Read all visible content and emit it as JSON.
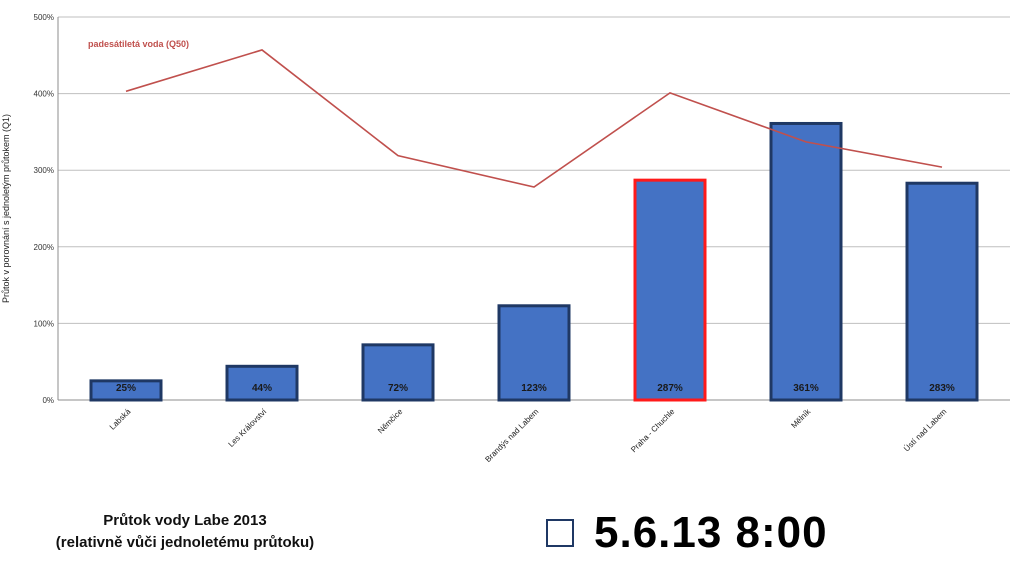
{
  "chart_data": {
    "type": "bar",
    "ylabel": "Průtok v porovnání s jednoletým průtokem (Q1)",
    "ylim": [
      0,
      500
    ],
    "yticks": [
      "0%",
      "100%",
      "200%",
      "300%",
      "400%",
      "500%"
    ],
    "grid": true,
    "categories": [
      "Labská",
      "Les Království",
      "Němčice",
      "Brandýs nad Labem",
      "Praha - Chuchle",
      "Mělník",
      "Ústí nad Labem"
    ],
    "values": [
      25,
      44,
      72,
      123,
      287,
      361,
      283
    ],
    "data_labels": [
      "25%",
      "44%",
      "72%",
      "123%",
      "287%",
      "361%",
      "283%"
    ],
    "highlighted_category": "Praha - Chuchle",
    "line": {
      "name": "padesátiletá voda (Q50)",
      "values": [
        403,
        457,
        319,
        278,
        401,
        337,
        304
      ]
    },
    "colors": {
      "bar": "#4472c4",
      "bar_border": "#1f3864",
      "highlight_border": "#ff1a1a",
      "line": "#c0504d",
      "grid": "#bfbfbf"
    }
  },
  "caption": {
    "line1": "Průtok vody Labe 2013",
    "line2": "(relativně vůči jednoletému průtoku)"
  },
  "timestamp": "5.6.13 8:00"
}
